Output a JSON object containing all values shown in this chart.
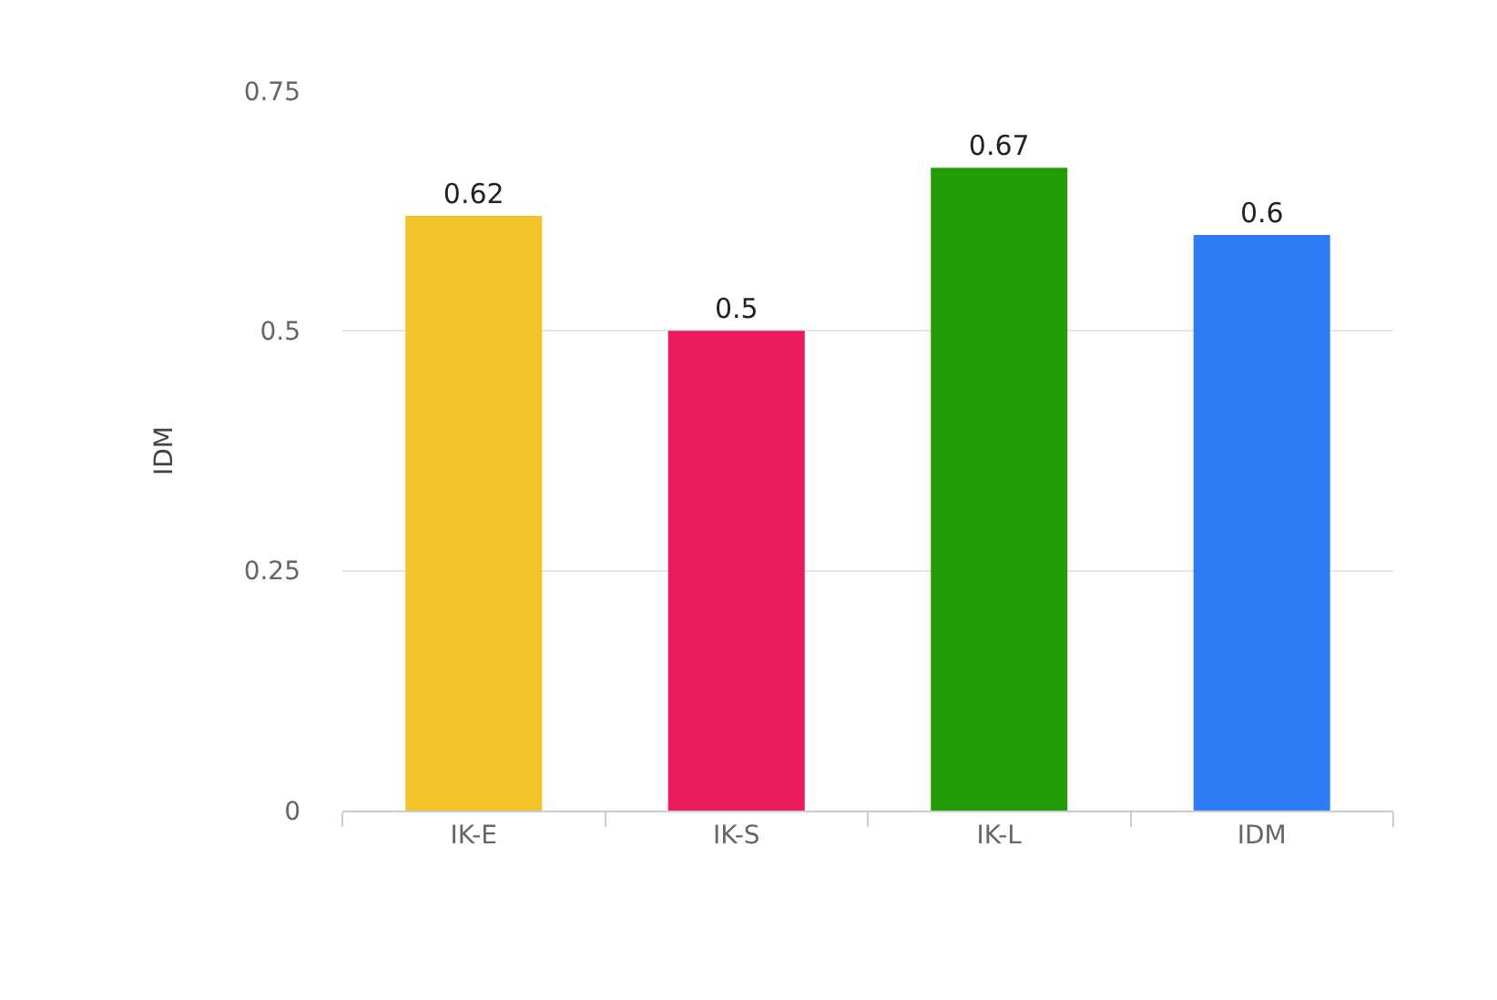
{
  "chart_data": {
    "type": "bar",
    "categories": [
      "IK-E",
      "IK-S",
      "IK-L",
      "IDM"
    ],
    "values": [
      0.62,
      0.5,
      0.67,
      0.6
    ],
    "colors": [
      "#f4c22b",
      "#e91b5a",
      "#249c03",
      "#2f7df6"
    ],
    "ylabel": "IDM",
    "ylim": [
      0,
      0.75
    ],
    "yticks": [
      0,
      0.25,
      0.5,
      0.75
    ],
    "grid": "y",
    "data_labels": true
  }
}
